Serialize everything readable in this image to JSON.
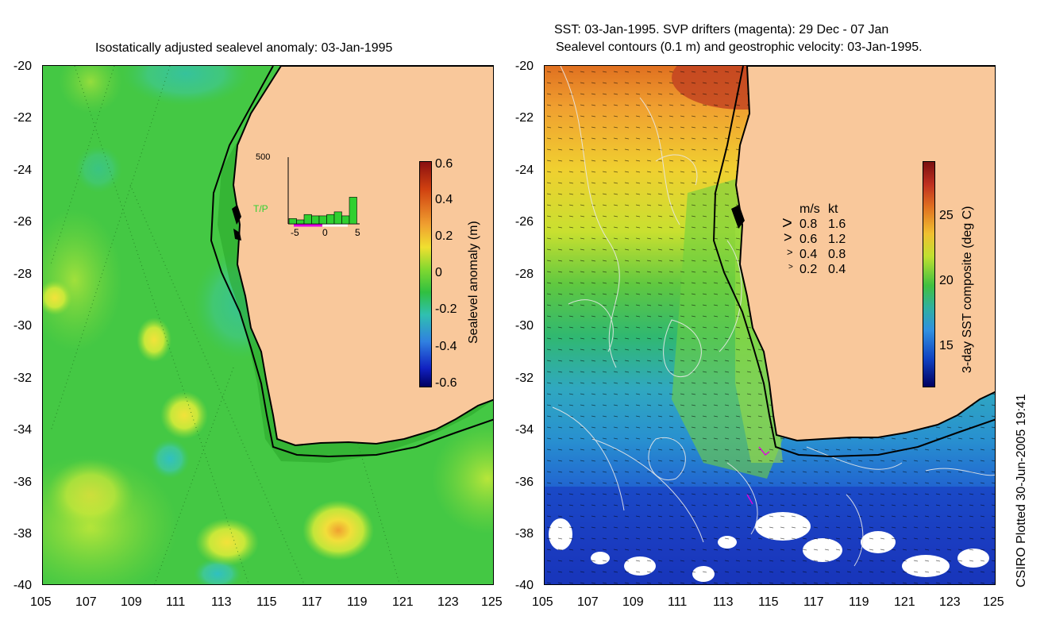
{
  "left_panel": {
    "title": "Isostatically adjusted sealevel anomaly: 03-Jan-1995",
    "colorbar_label": "Sealevel anomaly (m)",
    "colorbar_ticks": [
      "0.6",
      "0.4",
      "0.2",
      "0",
      "-0.2",
      "-0.4",
      "-0.6"
    ],
    "inset": {
      "label": "T/P",
      "y_max_label": "500",
      "x_ticks": [
        "-5",
        "0",
        "5"
      ],
      "bar_heights": [
        40,
        30,
        70,
        60,
        60,
        70,
        90,
        60,
        200
      ]
    }
  },
  "right_panel": {
    "title_line1": "SST: 03-Jan-1995. SVP drifters (magenta): 29 Dec - 07 Jan",
    "title_line2": "Sealevel contours (0.1 m) and geostrophic velocity: 03-Jan-1995.",
    "colorbar_label": "3-day SST composite (deg C)",
    "colorbar_ticks": [
      "25",
      "20",
      "15"
    ],
    "legend": {
      "header_ms": "m/s",
      "header_kt": "kt",
      "rows": [
        {
          "ms": "0.8",
          "kt": "1.6"
        },
        {
          "ms": "0.6",
          "kt": "1.2"
        },
        {
          "ms": "0.4",
          "kt": "0.8"
        },
        {
          "ms": "0.2",
          "kt": "0.4"
        }
      ]
    }
  },
  "y_ticks": [
    "-20",
    "-22",
    "-24",
    "-26",
    "-28",
    "-30",
    "-32",
    "-34",
    "-36",
    "-38",
    "-40"
  ],
  "x_ticks": [
    "105",
    "107",
    "109",
    "111",
    "113",
    "115",
    "117",
    "119",
    "121",
    "123",
    "125"
  ],
  "credit": "CSIRO Plotted 30-Jun-2005 19:41",
  "colors": {
    "land": "#f9c89b",
    "ocean_green": "#3cc840",
    "coast": "#000000",
    "contour": "#e8e8e8",
    "drifter": "#e000e0"
  }
}
